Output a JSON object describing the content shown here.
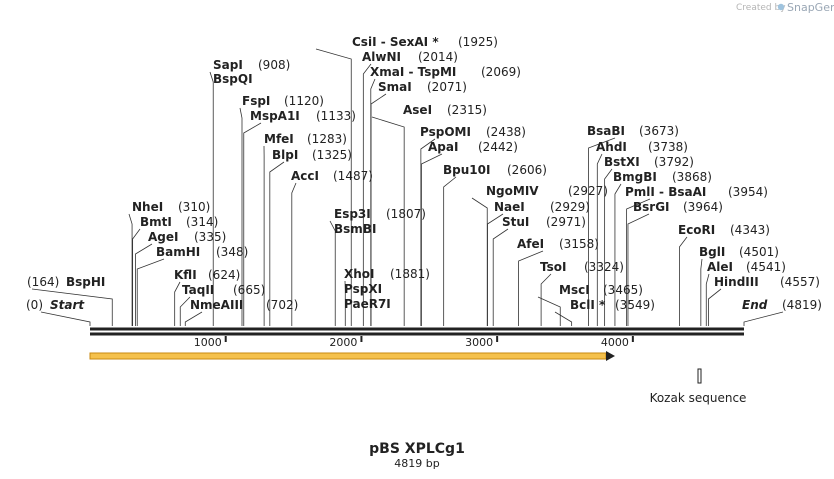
{
  "watermark": {
    "prefix": "Created by",
    "brand": "SnapGene"
  },
  "map": {
    "name": "pBS XPLCg1",
    "length_label": "4819 bp",
    "length": 4819
  },
  "ticks": [
    "1000",
    "2000",
    "3000",
    "4000"
  ],
  "features": {
    "orf_arrow": {
      "start": 1,
      "end": 3900,
      "color": "#f5c14c"
    },
    "kozak": {
      "position": 4600,
      "label": "Kozak sequence"
    }
  },
  "sites": [
    {
      "name": "Start",
      "pos": 0,
      "label": "(0)",
      "italic": true
    },
    {
      "name": "BspHI",
      "pos": 164,
      "label": "(164)"
    },
    {
      "name": "NheI",
      "pos": 310,
      "label": "(310)"
    },
    {
      "name": "BmtI",
      "pos": 314,
      "label": "(314)"
    },
    {
      "name": "AgeI",
      "pos": 335,
      "label": "(335)"
    },
    {
      "name": "BamHI",
      "pos": 348,
      "label": "(348)"
    },
    {
      "name": "KflI",
      "pos": 624,
      "label": "(624)"
    },
    {
      "name": "TaqII",
      "pos": 665,
      "label": "(665)"
    },
    {
      "name": "NmeAIII",
      "pos": 702,
      "label": "(702)"
    },
    {
      "name": "SapI",
      "pos": 908,
      "label": "(908)"
    },
    {
      "name": "BspQI",
      "pos": 908,
      "label": ""
    },
    {
      "name": "FspI",
      "pos": 1120,
      "label": "(1120)"
    },
    {
      "name": "MspA1I",
      "pos": 1133,
      "label": "(1133)"
    },
    {
      "name": "MfeI",
      "pos": 1283,
      "label": "(1283)"
    },
    {
      "name": "BlpI",
      "pos": 1325,
      "label": "(1325)"
    },
    {
      "name": "AccI",
      "pos": 1487,
      "label": "(1487)"
    },
    {
      "name": "Esp3I",
      "pos": 1807,
      "label": "(1807)"
    },
    {
      "name": "BsmBI",
      "pos": 1807,
      "label": ""
    },
    {
      "name": "XhoI",
      "pos": 1881,
      "label": "(1881)"
    },
    {
      "name": "PspXI",
      "pos": 1881,
      "label": ""
    },
    {
      "name": "PaeR7I",
      "pos": 1881,
      "label": ""
    },
    {
      "name": "CsiI - SexAI *",
      "pos": 1925,
      "label": "(1925)"
    },
    {
      "name": "AlwNI",
      "pos": 2014,
      "label": "(2014)"
    },
    {
      "name": "XmaI - TspMI",
      "pos": 2069,
      "label": "(2069)"
    },
    {
      "name": "SmaI",
      "pos": 2071,
      "label": "(2071)"
    },
    {
      "name": "AseI",
      "pos": 2315,
      "label": "(2315)"
    },
    {
      "name": "PspOMI",
      "pos": 2438,
      "label": "(2438)"
    },
    {
      "name": "ApaI",
      "pos": 2442,
      "label": "(2442)"
    },
    {
      "name": "Bpu10I",
      "pos": 2606,
      "label": "(2606)"
    },
    {
      "name": "NgoMIV",
      "pos": 2927,
      "label": "(2927)"
    },
    {
      "name": "NaeI",
      "pos": 2929,
      "label": "(2929)"
    },
    {
      "name": "StuI",
      "pos": 2971,
      "label": "(2971)"
    },
    {
      "name": "AfeI",
      "pos": 3158,
      "label": "(3158)"
    },
    {
      "name": "TsoI",
      "pos": 3324,
      "label": "(3324)"
    },
    {
      "name": "MscI",
      "pos": 3465,
      "label": "(3465)"
    },
    {
      "name": "BclI *",
      "pos": 3549,
      "label": "(3549)"
    },
    {
      "name": "BsaBI",
      "pos": 3673,
      "label": "(3673)"
    },
    {
      "name": "AhdI",
      "pos": 3738,
      "label": "(3738)"
    },
    {
      "name": "BstXI",
      "pos": 3792,
      "label": "(3792)"
    },
    {
      "name": "BmgBI",
      "pos": 3868,
      "label": "(3868)"
    },
    {
      "name": "PmlI - BsaAI",
      "pos": 3954,
      "label": "(3954)"
    },
    {
      "name": "BsrGI",
      "pos": 3964,
      "label": "(3964)"
    },
    {
      "name": "EcoRI",
      "pos": 4343,
      "label": "(4343)"
    },
    {
      "name": "BglI",
      "pos": 4501,
      "label": "(4501)"
    },
    {
      "name": "AleI",
      "pos": 4541,
      "label": "(4541)"
    },
    {
      "name": "HindIII",
      "pos": 4557,
      "label": "(4557)"
    },
    {
      "name": "End",
      "pos": 4819,
      "label": "(4819)",
      "italic": true
    }
  ]
}
